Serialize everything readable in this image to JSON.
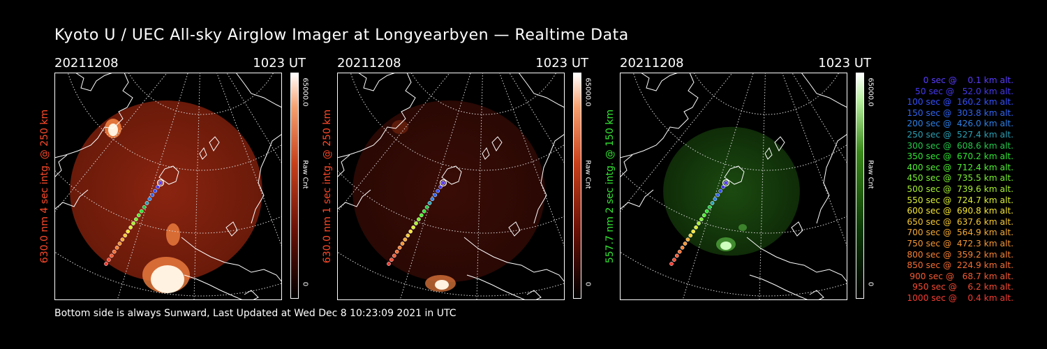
{
  "title": "Kyoto U / UEC All-sky Airglow Imager at Longyearbyen — Realtime Data",
  "footer": "Bottom side is always Sunward, Last Updated at Wed Dec  8 10:23:09 2021 in UTC",
  "panels": [
    {
      "date": "20211208",
      "time": "1023 UT",
      "side_label": "630.0 nm 4 sec intg. @ 250 km",
      "side_color": "#ff4a2a",
      "cbar_max": "65000.0",
      "cbar_min": "0",
      "cbar_unit": "Raw Cnt",
      "colormap": "red",
      "circle_scale": 1.0
    },
    {
      "date": "20211208",
      "time": "1023 UT",
      "side_label": "630.0 nm 1 sec intg. @ 250 km",
      "side_color": "#ff4a2a",
      "cbar_max": "65000.0",
      "cbar_min": "0",
      "cbar_unit": "Raw Cnt",
      "colormap": "red",
      "circle_scale": 1.0
    },
    {
      "date": "20211208",
      "time": "1023 UT",
      "side_label": "557.7 nm 2 sec intg. @ 150 km",
      "side_color": "#32e632",
      "cbar_max": "65000.0",
      "cbar_min": "0",
      "cbar_unit": "Raw Cnt",
      "colormap": "green",
      "circle_scale": 0.71
    }
  ],
  "trajectory_legend": [
    {
      "text": "   0 sec @    0.1 km alt.",
      "color": "#5a3cff"
    },
    {
      "text": "  50 sec @   52.0 km alt.",
      "color": "#4638f0"
    },
    {
      "text": " 100 sec @  160.2 km alt.",
      "color": "#3450ff"
    },
    {
      "text": " 150 sec @  303.8 km alt.",
      "color": "#3064f0"
    },
    {
      "text": " 200 sec @  426.0 km alt.",
      "color": "#2c80e6"
    },
    {
      "text": " 250 sec @  527.4 km alt.",
      "color": "#2aa0b4"
    },
    {
      "text": " 300 sec @  608.6 km alt.",
      "color": "#24c84a"
    },
    {
      "text": " 350 sec @  670.2 km alt.",
      "color": "#2ee632"
    },
    {
      "text": " 400 sec @  712.4 km alt.",
      "color": "#4ef032"
    },
    {
      "text": " 450 sec @  735.5 km alt.",
      "color": "#78f032"
    },
    {
      "text": " 500 sec @  739.6 km alt.",
      "color": "#a8f032"
    },
    {
      "text": " 550 sec @  724.7 km alt.",
      "color": "#dcf032"
    },
    {
      "text": " 600 sec @  690.8 km alt.",
      "color": "#f5e632"
    },
    {
      "text": " 650 sec @  637.6 km alt.",
      "color": "#f5c832"
    },
    {
      "text": " 700 sec @  564.9 km alt.",
      "color": "#f5aa32"
    },
    {
      "text": " 750 sec @  472.3 km alt.",
      "color": "#f59632"
    },
    {
      "text": " 800 sec @  359.2 km alt.",
      "color": "#f58232"
    },
    {
      "text": " 850 sec @  224.9 km alt.",
      "color": "#f56e32"
    },
    {
      "text": " 900 sec @   68.7 km alt.",
      "color": "#f55a32"
    },
    {
      "text": " 950 sec @    6.2 km alt.",
      "color": "#f54a32"
    },
    {
      "text": "1000 sec @    0.4 km alt.",
      "color": "#f53c32"
    }
  ]
}
